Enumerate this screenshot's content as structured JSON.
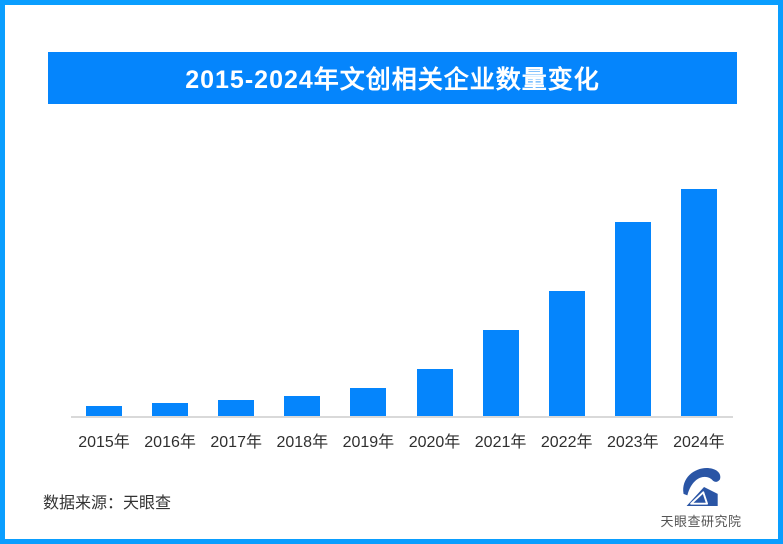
{
  "page": {
    "border_color": "#0a9eff",
    "background_color": "#ffffff"
  },
  "header": {
    "title": "2015-2024年文创相关企业数量变化",
    "banner_color": "#0585fc",
    "title_color": "#ffffff"
  },
  "chart_data": {
    "type": "bar",
    "title": "2015-2024年文创相关企业数量变化",
    "categories": [
      "2015年",
      "2016年",
      "2017年",
      "2018年",
      "2019年",
      "2020年",
      "2021年",
      "2022年",
      "2023年",
      "2024年"
    ],
    "values": [
      10,
      12.5,
      16,
      20,
      27.5,
      47,
      86,
      125,
      194,
      227
    ],
    "xlabel": "",
    "ylabel": "",
    "ylim": [
      0,
      250
    ],
    "grid": false,
    "legend": false,
    "y_axis_visible": false,
    "bar_color": "#0585fc",
    "axis_line_color": "#d9d9d9"
  },
  "footer": {
    "source_label": "数据来源：天眼查",
    "logo_text": "天眼查研究院",
    "logo_color": "#2a55a5"
  }
}
